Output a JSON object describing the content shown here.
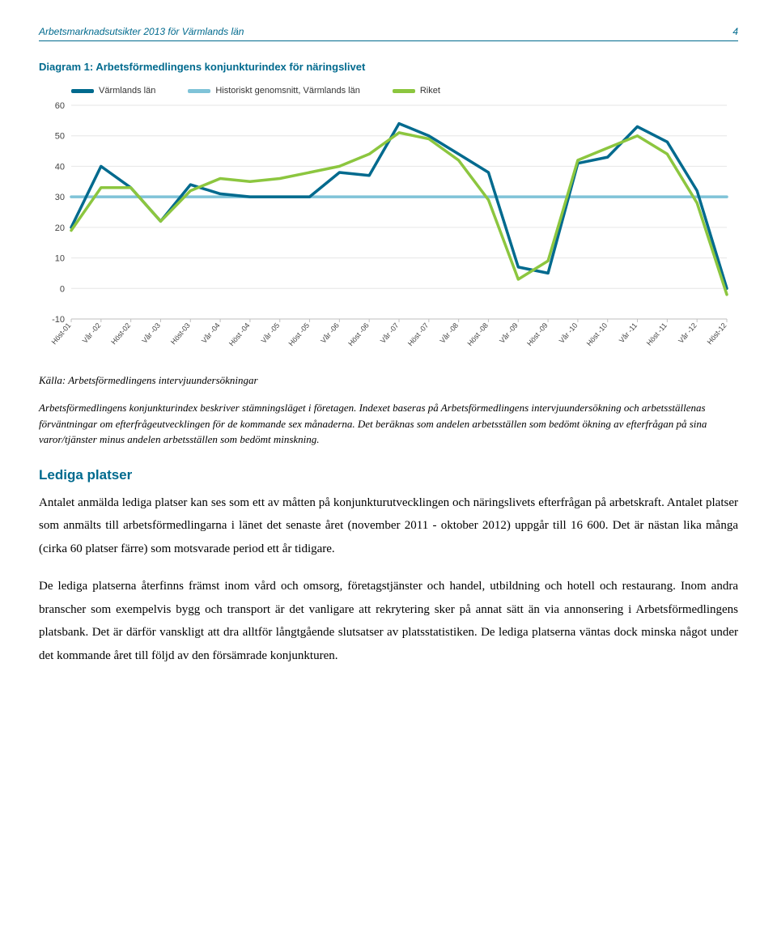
{
  "header": {
    "title": "Arbetsmarknadsutsikter 2013 för Värmlands län",
    "page": "4"
  },
  "chart": {
    "title": "Diagram 1: Arbetsförmedlingens konjunkturindex för näringslivet",
    "type": "line",
    "legend": [
      {
        "label": "Värmlands län",
        "color": "#006a8e"
      },
      {
        "label": "Historiskt genomsnitt, Värmlands län",
        "color": "#7fc3d8"
      },
      {
        "label": "Riket",
        "color": "#8cc63f"
      }
    ],
    "categories": [
      "Höst-01",
      "Vår -02",
      "Höst-02",
      "Vår -03",
      "Höst-03",
      "Vår -04",
      "Höst -04",
      "Vår -05",
      "Höst -05",
      "Vår -06",
      "Höst -06",
      "Vår -07",
      "Höst -07",
      "Vår -08",
      "Höst -08",
      "Vår -09",
      "Höst -09",
      "Vår -10",
      "Höst -10",
      "Vår -11",
      "Höst -11",
      "Vår -12",
      "Höst-12"
    ],
    "ylim": [
      -10,
      60
    ],
    "yticks": [
      -10,
      0,
      10,
      20,
      30,
      40,
      50,
      60
    ],
    "series": {
      "varmland": [
        20,
        40,
        33,
        22,
        34,
        31,
        30,
        30,
        30,
        38,
        37,
        54,
        50,
        44,
        38,
        7,
        5,
        41,
        43,
        53,
        48,
        32,
        0
      ],
      "historic": 30,
      "riket": [
        19,
        33,
        33,
        22,
        32,
        36,
        35,
        36,
        38,
        40,
        44,
        51,
        49,
        42,
        29,
        3,
        9,
        42,
        46,
        50,
        44,
        28,
        -2
      ]
    },
    "colors": {
      "varmland": "#006a8e",
      "historic": "#7fc3d8",
      "riket": "#8cc63f"
    },
    "line_width": 3.5,
    "grid_color": "#e6e6e6",
    "axis_color": "#bfbfbf",
    "background": "#ffffff"
  },
  "source": "Källa: Arbetsförmedlingens intervjuundersökningar",
  "caption": "Arbetsförmedlingens konjunkturindex beskriver stämningsläget i företagen. Indexet baseras på Arbetsförmedlingens intervjuundersökning och arbetsställenas förväntningar om efterfrågeutvecklingen för de kommande sex månaderna. Det beräknas som andelen arbetsställen som bedömt ökning av efterfrågan på sina varor/tjänster minus andelen arbetsställen som bedömt minskning.",
  "section_heading": "Lediga platser",
  "paragraphs": [
    "Antalet anmälda lediga platser kan ses som ett av måtten på konjunkturutvecklingen och näringslivets efterfrågan på arbetskraft. Antalet platser som anmälts till arbetsförmedlingarna i länet det senaste året (november 2011 - oktober 2012) uppgår till 16 600. Det är nästan lika många (cirka 60 platser färre) som motsvarade period ett år tidigare.",
    "De lediga platserna återfinns främst inom vård och omsorg, företagstjänster och handel, utbildning och hotell och restaurang. Inom andra branscher som exempelvis bygg och transport är det vanligare att rekrytering sker på annat sätt än via annonsering i Arbetsförmedlingens platsbank. Det är därför vanskligt att dra alltför långtgående slutsatser av platsstatistiken. De lediga platserna väntas dock minska något under det kommande året till följd av den försämrade konjunkturen."
  ]
}
